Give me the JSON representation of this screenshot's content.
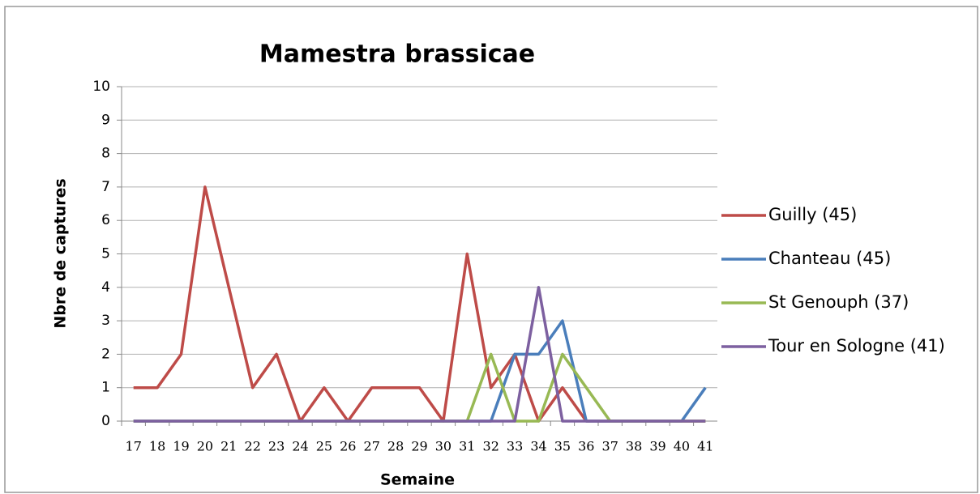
{
  "chart_data": {
    "type": "line",
    "title": "Mamestra brassicae",
    "x_label": "Semaine",
    "y_label": "Nbre de captures",
    "categories": [
      "17",
      "18",
      "19",
      "20",
      "21",
      "22",
      "23",
      "24",
      "25",
      "26",
      "27",
      "28",
      "29",
      "30",
      "31",
      "32",
      "33",
      "34",
      "35",
      "36",
      "37",
      "38",
      "39",
      "40",
      "41"
    ],
    "series": [
      {
        "name": "Guilly (45)",
        "color": "#be4b48",
        "values": [
          1,
          1,
          2,
          7,
          4,
          1,
          2,
          0,
          1,
          0,
          1,
          1,
          1,
          0,
          5,
          1,
          2,
          0,
          1,
          0,
          0,
          0,
          0,
          0,
          0
        ]
      },
      {
        "name": "Chanteau (45)",
        "color": "#4a7ebb",
        "values": [
          0,
          0,
          0,
          0,
          0,
          0,
          0,
          0,
          0,
          0,
          0,
          0,
          0,
          0,
          0,
          0,
          2,
          2,
          3,
          0,
          0,
          0,
          0,
          0,
          1
        ]
      },
      {
        "name": "St Genouph (37)",
        "color": "#98b954",
        "values": [
          0,
          0,
          0,
          0,
          0,
          0,
          0,
          0,
          0,
          0,
          0,
          0,
          0,
          0,
          0,
          2,
          0,
          0,
          2,
          1,
          0,
          0,
          0,
          0,
          0
        ]
      },
      {
        "name": "Tour en Sologne (41)",
        "color": "#7d60a0",
        "values": [
          0,
          0,
          0,
          0,
          0,
          0,
          0,
          0,
          0,
          0,
          0,
          0,
          0,
          0,
          0,
          0,
          0,
          4,
          0,
          0,
          0,
          0,
          0,
          0,
          0
        ]
      }
    ],
    "ylim": [
      0,
      10
    ],
    "yticks": [
      0,
      1,
      2,
      3,
      4,
      5,
      6,
      7,
      8,
      9,
      10
    ],
    "grid": true,
    "legend": "right"
  }
}
